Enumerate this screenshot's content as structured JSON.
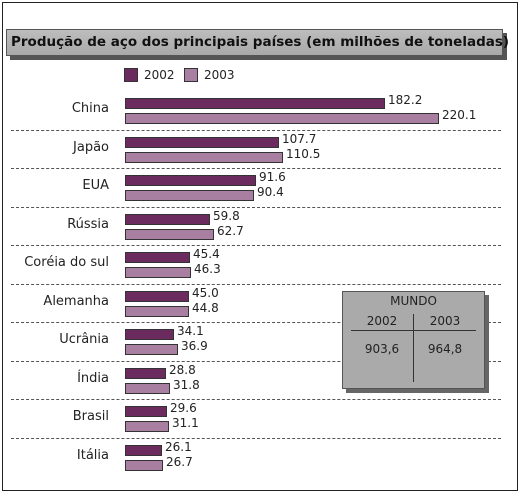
{
  "chart_data": {
    "type": "bar",
    "orientation": "horizontal",
    "title": "Produção de aço dos principais países (em milhões de toneladas)",
    "categories": [
      "China",
      "Japão",
      "EUA",
      "Rússia",
      "Coréia do sul",
      "Alemanha",
      "Ucrânia",
      "Índia",
      "Brasil",
      "Itália"
    ],
    "series": [
      {
        "name": "2002",
        "color": "#6b2b5e",
        "values": [
          182.2,
          107.7,
          91.6,
          59.8,
          45.4,
          45.0,
          34.1,
          28.8,
          29.6,
          26.1
        ],
        "labels": [
          "182.2",
          "107.7",
          "91.6",
          "59.8",
          "45.4",
          "45.0",
          "34.1",
          "28.8",
          "29.6",
          "26.1"
        ]
      },
      {
        "name": "2003",
        "color": "#a87fa0",
        "values": [
          220.1,
          110.5,
          90.4,
          62.7,
          46.3,
          44.8,
          36.9,
          31.8,
          31.1,
          26.7
        ],
        "labels": [
          "220.1",
          "110.5",
          "90.4",
          "62.7",
          "46.3",
          "44.8",
          "36.9",
          "31.8",
          "31.1",
          "26.7"
        ]
      }
    ],
    "legend_position": "top-left",
    "grid": false
  },
  "world_box": {
    "title": "MUNDO",
    "years": [
      "2002",
      "2003"
    ],
    "values": [
      "903,6",
      "964,8"
    ]
  }
}
